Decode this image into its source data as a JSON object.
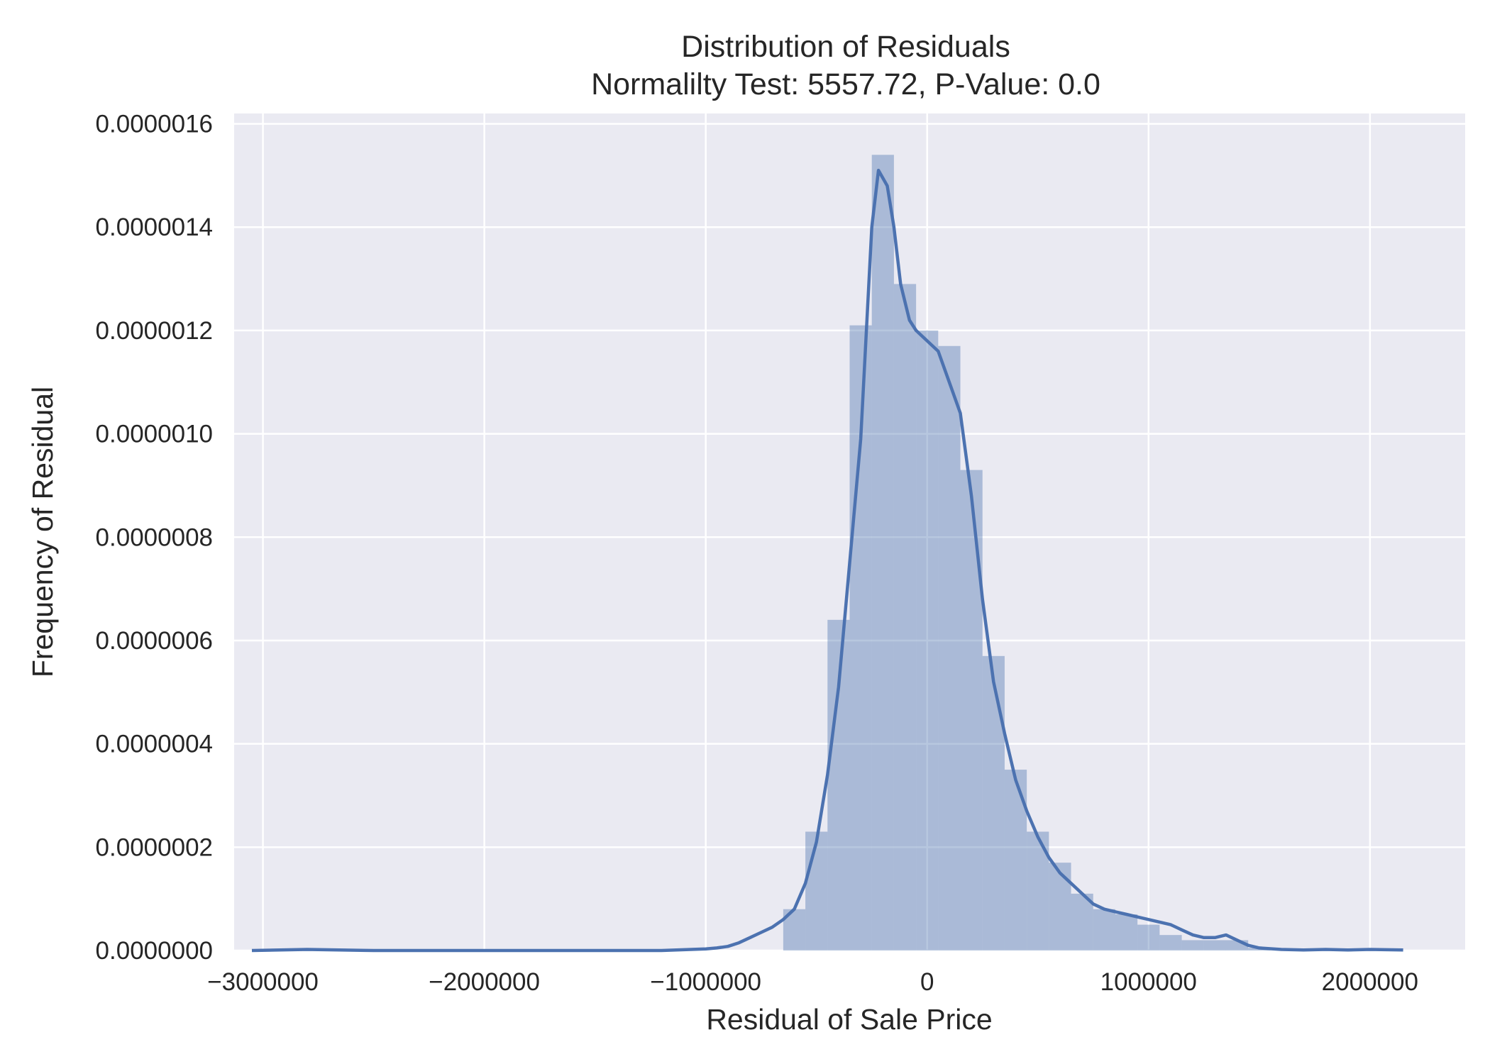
{
  "chart_data": {
    "type": "histogram",
    "title": "Distribution of Residuals",
    "subtitle": "Normalilty Test: 5557.72, P-Value: 0.0",
    "xlabel": "Residual of Sale Price",
    "ylabel": "Frequency of Residual",
    "xlim": [
      -3130000,
      2430000
    ],
    "ylim": [
      0,
      1.62e-06
    ],
    "xticks": [
      -3000000,
      -2000000,
      -1000000,
      0,
      1000000,
      2000000
    ],
    "xtick_labels": [
      "−3000000",
      "−2000000",
      "−1000000",
      "0",
      "1000000",
      "2000000"
    ],
    "yticks": [
      0,
      2e-07,
      4e-07,
      6e-07,
      8e-07,
      1e-06,
      1.2e-06,
      1.4e-06,
      1.6e-06
    ],
    "ytick_labels": [
      "0.0000000",
      "0.0000002",
      "0.0000004",
      "0.0000006",
      "0.0000008",
      "0.0000010",
      "0.0000012",
      "0.0000014",
      "0.0000016"
    ],
    "grid": true,
    "colors": {
      "background": "#eaeaf2",
      "grid": "#ffffff",
      "bars": "#4c72b0",
      "kde_line": "#4c72b0"
    },
    "histogram": {
      "bin_width": 100000,
      "bin_starts": [
        -650000,
        -550000,
        -450000,
        -350000,
        -250000,
        -150000,
        -50000,
        50000,
        150000,
        250000,
        350000,
        450000,
        550000,
        650000,
        750000,
        850000,
        950000,
        1050000,
        1150000,
        1250000,
        1350000,
        1450000
      ],
      "densities": [
        8e-08,
        2.3e-07,
        6.4e-07,
        1.21e-06,
        1.54e-06,
        1.29e-06,
        1.2e-06,
        1.17e-06,
        9.3e-07,
        5.7e-07,
        3.5e-07,
        2.3e-07,
        1.7e-07,
        1.1e-07,
        8e-08,
        7e-08,
        5e-08,
        3e-08,
        2e-08,
        2e-08,
        2e-08,
        5e-09
      ]
    },
    "kde": {
      "x": [
        -3050000,
        -2800000,
        -2500000,
        -2000000,
        -1500000,
        -1200000,
        -1000000,
        -950000,
        -900000,
        -850000,
        -800000,
        -750000,
        -700000,
        -650000,
        -600000,
        -550000,
        -500000,
        -450000,
        -400000,
        -350000,
        -300000,
        -250000,
        -220000,
        -180000,
        -150000,
        -120000,
        -80000,
        -50000,
        0,
        50000,
        100000,
        150000,
        200000,
        250000,
        300000,
        350000,
        400000,
        450000,
        500000,
        550000,
        600000,
        650000,
        700000,
        750000,
        800000,
        850000,
        900000,
        950000,
        1000000,
        1100000,
        1150000,
        1200000,
        1250000,
        1300000,
        1350000,
        1400000,
        1450000,
        1500000,
        1600000,
        1700000,
        1800000,
        1900000,
        2000000,
        2150000
      ],
      "y": [
        0.0,
        2e-09,
        0.0,
        0.0,
        0.0,
        0.0,
        3e-09,
        5e-09,
        8e-09,
        1.5e-08,
        2.5e-08,
        3.5e-08,
        4.5e-08,
        6e-08,
        8e-08,
        1.3e-07,
        2.1e-07,
        3.4e-07,
        5.1e-07,
        7.5e-07,
        9.9e-07,
        1.4e-06,
        1.51e-06,
        1.48e-06,
        1.4e-06,
        1.29e-06,
        1.22e-06,
        1.2e-06,
        1.18e-06,
        1.16e-06,
        1.1e-06,
        1.04e-06,
        8.8e-07,
        6.8e-07,
        5.2e-07,
        4.2e-07,
        3.3e-07,
        2.7e-07,
        2.2e-07,
        1.8e-07,
        1.5e-07,
        1.3e-07,
        1.1e-07,
        9e-08,
        8e-08,
        7.5e-08,
        7e-08,
        6.5e-08,
        6e-08,
        5e-08,
        4e-08,
        3e-08,
        2.5e-08,
        2.5e-08,
        3e-08,
        2e-08,
        1e-08,
        5e-09,
        2e-09,
        1e-09,
        2e-09,
        1e-09,
        2e-09,
        1e-09
      ]
    }
  }
}
